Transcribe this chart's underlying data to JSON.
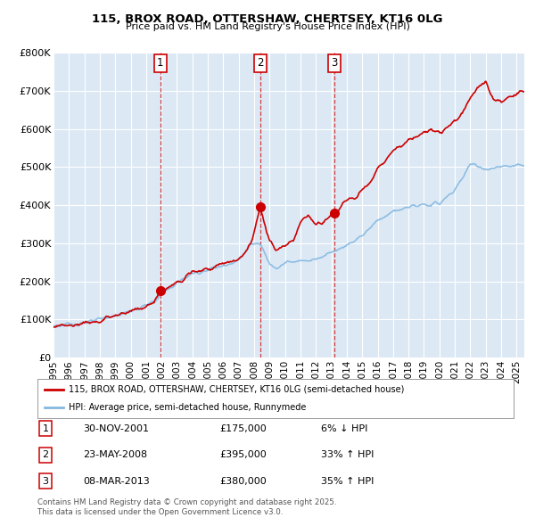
{
  "title": "115, BROX ROAD, OTTERSHAW, CHERTSEY, KT16 0LG",
  "subtitle": "Price paid vs. HM Land Registry's House Price Index (HPI)",
  "ylim": [
    0,
    800000
  ],
  "xlim_start": 1995.0,
  "xlim_end": 2025.5,
  "yticks": [
    0,
    100000,
    200000,
    300000,
    400000,
    500000,
    600000,
    700000,
    800000
  ],
  "ytick_labels": [
    "£0",
    "£100K",
    "£200K",
    "£300K",
    "£400K",
    "£500K",
    "£600K",
    "£700K",
    "£800K"
  ],
  "xticks": [
    1995,
    1996,
    1997,
    1998,
    1999,
    2000,
    2001,
    2002,
    2003,
    2004,
    2005,
    2006,
    2007,
    2008,
    2009,
    2010,
    2011,
    2012,
    2013,
    2014,
    2015,
    2016,
    2017,
    2018,
    2019,
    2020,
    2021,
    2022,
    2023,
    2024,
    2025
  ],
  "bg_color": "#dce9f5",
  "fig_color": "#ffffff",
  "grid_color": "#ffffff",
  "hpi_line_color": "#85b8e0",
  "price_line_color": "#cc0000",
  "vline_color": "#cc0000",
  "sale1_x": 2001.92,
  "sale1_y": 175000,
  "sale1_label": "1",
  "sale1_date": "30-NOV-2001",
  "sale1_price": "£175,000",
  "sale1_hpi": "6% ↓ HPI",
  "sale2_x": 2008.39,
  "sale2_y": 395000,
  "sale2_label": "2",
  "sale2_date": "23-MAY-2008",
  "sale2_price": "£395,000",
  "sale2_hpi": "33% ↑ HPI",
  "sale3_x": 2013.18,
  "sale3_y": 380000,
  "sale3_label": "3",
  "sale3_date": "08-MAR-2013",
  "sale3_price": "£380,000",
  "sale3_hpi": "35% ↑ HPI",
  "legend_label1": "115, BROX ROAD, OTTERSHAW, CHERTSEY, KT16 0LG (semi-detached house)",
  "legend_label2": "HPI: Average price, semi-detached house, Runnymede",
  "footer1": "Contains HM Land Registry data © Crown copyright and database right 2025.",
  "footer2": "This data is licensed under the Open Government Licence v3.0."
}
